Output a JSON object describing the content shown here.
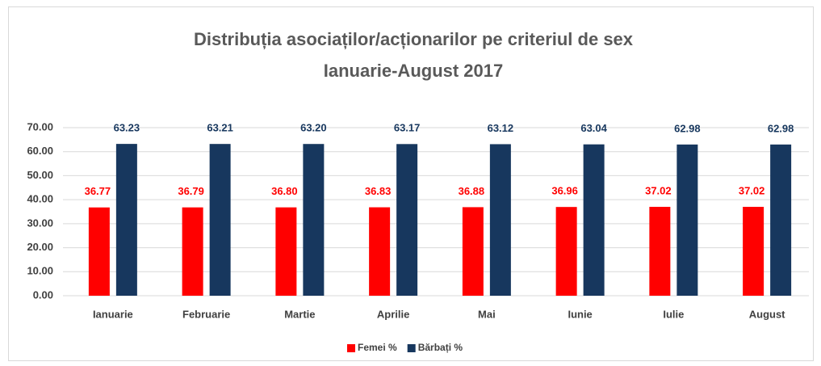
{
  "chart_data": {
    "type": "bar",
    "title": [
      "Distribuția asociaților/acționarilor pe criteriul de sex",
      "Ianuarie-August 2017"
    ],
    "categories": [
      "Ianuarie",
      "Februarie",
      "Martie",
      "Aprilie",
      "Mai",
      "Iunie",
      "Iulie",
      "August"
    ],
    "series": [
      {
        "name": "Femei %",
        "color": "#ff0000",
        "values": [
          36.77,
          36.79,
          36.8,
          36.83,
          36.88,
          36.96,
          37.02,
          37.02
        ],
        "value_labels": [
          "36.77",
          "36.79",
          "36.80",
          "36.83",
          "36.88",
          "36.96",
          "37.02",
          "37.02"
        ]
      },
      {
        "name": "Bărbați %",
        "color": "#17375e",
        "values": [
          63.23,
          63.21,
          63.2,
          63.17,
          63.12,
          63.04,
          62.98,
          62.98
        ],
        "value_labels": [
          "63.23",
          "63.21",
          "63.20",
          "63.17",
          "63.12",
          "63.04",
          "62.98",
          "62.98"
        ]
      }
    ],
    "ylim": [
      0,
      70
    ],
    "yticks": [
      {
        "value": 0,
        "label": "0.00"
      },
      {
        "value": 10,
        "label": "10.00"
      },
      {
        "value": 20,
        "label": "20.00"
      },
      {
        "value": 30,
        "label": "30.00"
      },
      {
        "value": 40,
        "label": "40.00"
      },
      {
        "value": 50,
        "label": "50.00"
      },
      {
        "value": 60,
        "label": "60.00"
      },
      {
        "value": 70,
        "label": "70.00"
      }
    ],
    "grid": true,
    "legend": "bottom"
  }
}
